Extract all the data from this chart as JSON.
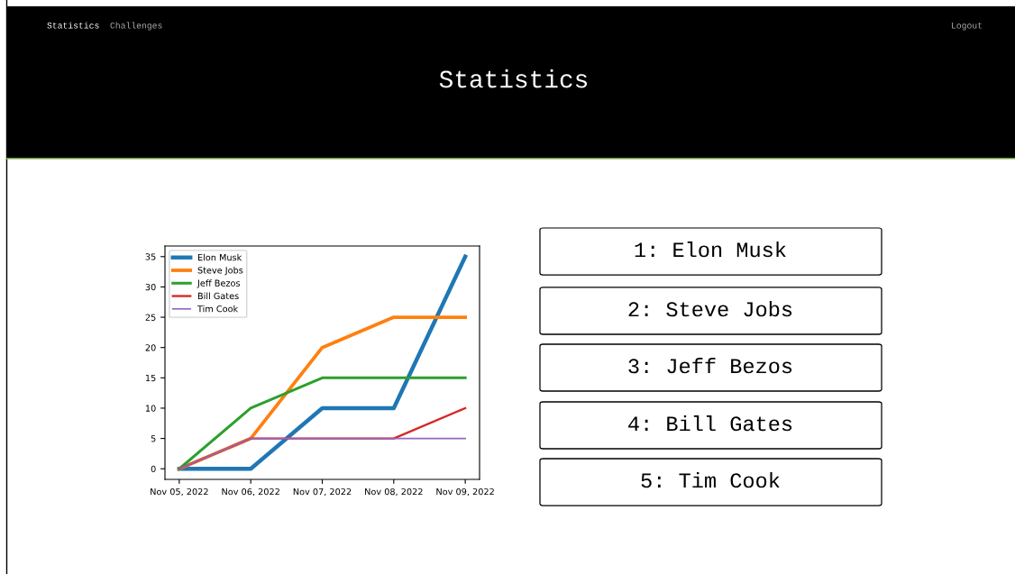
{
  "chart_data": {
    "type": "line",
    "title": "Statistics",
    "x": [
      "2022-11-05",
      "2022-11-06",
      "2022-11-07",
      "2022-11-08",
      "2022-11-09"
    ],
    "series": [
      {
        "name": "Elon Musk",
        "color": "#1f77b4",
        "values": [
          0,
          0,
          10,
          10,
          35
        ]
      },
      {
        "name": "Steve Jobs",
        "color": "#ff7f0e",
        "values": [
          0,
          5,
          20,
          25,
          25
        ]
      },
      {
        "name": "Jeff Bezos",
        "color": "#2ca02c",
        "values": [
          0,
          10,
          15,
          15,
          15
        ]
      },
      {
        "name": "Bill Gates",
        "color": "#d62728",
        "values": [
          0,
          5,
          5,
          5,
          10
        ]
      },
      {
        "name": "Tim Cook",
        "color": "#9467bd",
        "values": [
          0,
          5,
          5,
          5,
          5
        ]
      }
    ],
    "xlim": [
      "2022-11-04T19:12",
      "2022-11-09T04:48"
    ],
    "xticks": [
      {
        "value": "2022-11-05",
        "label": "Nov 05, 2022"
      },
      {
        "value": "2022-11-06",
        "label": "Nov 06, 2022"
      },
      {
        "value": "2022-11-07",
        "label": "Nov 07, 2022"
      },
      {
        "value": "2022-11-08",
        "label": "Nov 08, 2022"
      },
      {
        "value": "2022-11-09",
        "label": "Nov 09, 2022"
      }
    ],
    "ylim": [
      -1.75,
      36.75
    ],
    "yticks": [
      0,
      5,
      10,
      15,
      20,
      25,
      30,
      35
    ],
    "legend": "top left",
    "grid": false,
    "line_style": "solid",
    "annotations": [
      "Statistics",
      "Challenges",
      "Logout",
      "1: Elon Musk",
      "2: Steve Jobs",
      "3: Jeff Bezos",
      "4: Bill Gates",
      "5: Tim Cook"
    ]
  }
}
